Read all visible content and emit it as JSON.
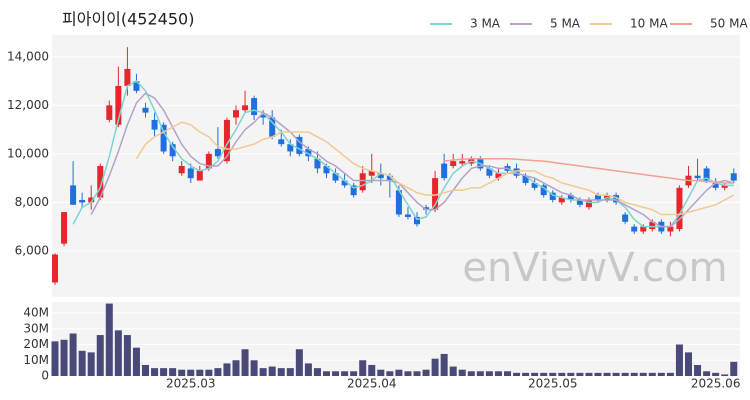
{
  "chart_data": {
    "type": "candlestick",
    "title": "피아이이(452450)",
    "watermark": "enViewV.com",
    "categories": [
      null,
      null,
      null,
      null,
      null,
      null,
      null,
      null,
      null,
      null,
      null,
      null,
      null,
      null,
      null,
      "2025.03",
      null,
      null,
      null,
      null,
      null,
      null,
      null,
      null,
      null,
      null,
      null,
      null,
      null,
      null,
      null,
      null,
      null,
      null,
      null,
      "2025.04",
      null,
      null,
      null,
      null,
      null,
      null,
      null,
      null,
      null,
      null,
      null,
      null,
      null,
      null,
      null,
      null,
      null,
      null,
      null,
      "2025.05",
      null,
      null,
      null,
      null,
      null,
      null,
      null,
      null,
      null,
      null,
      null,
      null,
      null,
      null,
      null,
      null,
      null,
      "2025.06",
      null,
      null
    ],
    "open": [
      4700,
      6300,
      8700,
      8100,
      8000,
      8200,
      11400,
      11200,
      12800,
      13000,
      11900,
      11400,
      11200,
      10400,
      9200,
      9400,
      8900,
      9400,
      10200,
      9700,
      11500,
      11800,
      12300,
      11600,
      11500,
      10600,
      10400,
      10700,
      10200,
      9800,
      9500,
      9200,
      8900,
      8700,
      8500,
      9100,
      9200,
      9100,
      8500,
      7500,
      7400,
      7800,
      7700,
      9600,
      9500,
      9600,
      9600,
      9800,
      9400,
      9000,
      9500,
      9400,
      9100,
      8800,
      8700,
      8400,
      8000,
      8300,
      8100,
      7800,
      8300,
      8100,
      8300,
      7500,
      7000,
      6800,
      6900,
      7200,
      6800,
      6900,
      8700,
      9100,
      9400,
      8800,
      8600,
      9200
    ],
    "high": [
      5900,
      7600,
      9700,
      8400,
      8700,
      9600,
      12200,
      13600,
      14400,
      13300,
      12100,
      11700,
      11300,
      10500,
      9700,
      9600,
      9500,
      10100,
      11100,
      11500,
      12000,
      12600,
      12400,
      11800,
      11800,
      11000,
      10600,
      10800,
      10300,
      10100,
      9600,
      9400,
      9200,
      8800,
      9500,
      10000,
      9600,
      9200,
      8700,
      7800,
      7600,
      7900,
      9300,
      10000,
      10000,
      10000,
      9900,
      9900,
      9500,
      9400,
      9600,
      9600,
      9200,
      9000,
      8800,
      8500,
      8300,
      8400,
      8200,
      8200,
      8400,
      8400,
      8400,
      7600,
      7100,
      7100,
      7300,
      7300,
      7200,
      8700,
      9500,
      9800,
      9500,
      9000,
      8800,
      9400
    ],
    "low": [
      4600,
      6200,
      7900,
      7800,
      7700,
      8100,
      11300,
      11100,
      12400,
      12500,
      11500,
      10700,
      10000,
      9700,
      9100,
      8800,
      8900,
      9300,
      9800,
      9600,
      11200,
      11700,
      11400,
      11200,
      10600,
      10300,
      9900,
      9900,
      9700,
      9200,
      9000,
      8800,
      8600,
      8200,
      8400,
      8800,
      8700,
      8200,
      7400,
      7300,
      7000,
      7500,
      7600,
      8900,
      9400,
      9500,
      9500,
      9300,
      9000,
      8900,
      9200,
      9000,
      8700,
      8500,
      8200,
      8000,
      7900,
      8000,
      7800,
      7700,
      8000,
      8000,
      7900,
      7100,
      6700,
      6700,
      6800,
      6700,
      6600,
      6800,
      8600,
      8900,
      8800,
      8500,
      8500,
      8800
    ],
    "close": [
      5850,
      7600,
      7900,
      8000,
      8200,
      9500,
      12000,
      12800,
      13500,
      12600,
      11700,
      11000,
      10100,
      9900,
      9500,
      9000,
      9300,
      10000,
      9900,
      11400,
      11800,
      12000,
      11600,
      11500,
      10700,
      10400,
      10100,
      10000,
      9900,
      9400,
      9200,
      8900,
      8700,
      8300,
      9200,
      9300,
      9000,
      8900,
      7500,
      7400,
      7100,
      7700,
      9000,
      9000,
      9700,
      9700,
      9800,
      9400,
      9100,
      9200,
      9300,
      9100,
      8800,
      8600,
      8300,
      8100,
      8200,
      8100,
      7900,
      8100,
      8100,
      8300,
      8000,
      7200,
      6800,
      7000,
      7200,
      6800,
      7000,
      8600,
      9100,
      9000,
      8900,
      8600,
      8700,
      8900
    ],
    "volume": [
      22,
      23,
      27,
      16,
      15,
      26,
      46,
      29,
      26,
      18,
      7,
      5,
      5,
      5,
      4,
      4,
      4,
      4,
      5,
      8,
      10,
      17,
      10,
      5,
      6,
      5,
      5,
      17,
      8,
      5,
      3,
      3,
      3,
      3,
      10,
      7,
      4,
      3,
      4,
      3,
      3,
      4,
      11,
      14,
      6,
      4,
      3,
      3,
      3,
      3,
      3,
      2,
      2,
      2,
      2,
      2,
      2,
      2,
      2,
      2,
      2,
      2,
      2,
      2,
      2,
      2,
      2,
      2,
      2,
      20,
      15,
      7,
      3,
      2,
      1,
      9
    ],
    "up_color": "#e8242c",
    "down_color": "#1f6fde",
    "volume_color": "#4a4a7a",
    "series": [
      {
        "name": "3 MA",
        "color": "#7fd3cf",
        "values": [
          null,
          null,
          7100,
          7800,
          8000,
          8600,
          9900,
          11400,
          12800,
          13000,
          12600,
          11800,
          10900,
          10300,
          9800,
          9500,
          9300,
          9400,
          9700,
          10400,
          11000,
          11700,
          11800,
          11700,
          11300,
          10900,
          10400,
          10200,
          10000,
          9800,
          9500,
          9200,
          8900,
          8600,
          8700,
          8900,
          9200,
          9100,
          8500,
          7900,
          7300,
          7400,
          7900,
          8600,
          9200,
          9500,
          9700,
          9600,
          9400,
          9200,
          9200,
          9200,
          9100,
          8800,
          8600,
          8300,
          8200,
          8100,
          8100,
          8000,
          8000,
          8200,
          8100,
          7800,
          7300,
          7000,
          7000,
          7000,
          7000,
          7500,
          8200,
          8900,
          9000,
          8800,
          8700,
          8700
        ]
      },
      {
        "name": "5 MA",
        "color": "#b3a2c9",
        "values": [
          null,
          null,
          null,
          null,
          7500,
          8200,
          9100,
          10100,
          11200,
          12100,
          12500,
          12300,
          11800,
          11100,
          10400,
          9900,
          9600,
          9500,
          9500,
          9900,
          10500,
          11000,
          11300,
          11700,
          11500,
          11200,
          10900,
          10500,
          10200,
          10000,
          9700,
          9500,
          9200,
          8900,
          8900,
          8900,
          8900,
          8900,
          8800,
          8400,
          8000,
          7700,
          7700,
          8000,
          8500,
          9000,
          9400,
          9500,
          9500,
          9400,
          9400,
          9200,
          9100,
          9000,
          8800,
          8600,
          8400,
          8300,
          8100,
          8100,
          8100,
          8100,
          8100,
          7900,
          7700,
          7500,
          7200,
          7000,
          7000,
          7300,
          7700,
          8100,
          8500,
          8800,
          8900,
          8800
        ]
      },
      {
        "name": "10 MA",
        "color": "#f2c992",
        "values": [
          null,
          null,
          null,
          null,
          null,
          null,
          null,
          null,
          null,
          9800,
          10400,
          10700,
          10900,
          11100,
          11300,
          11200,
          10900,
          10700,
          10300,
          10200,
          10200,
          10300,
          10400,
          10600,
          10700,
          10900,
          10900,
          10900,
          10900,
          10700,
          10500,
          10200,
          9900,
          9600,
          9400,
          9300,
          9200,
          9100,
          8800,
          8600,
          8400,
          8300,
          8300,
          8400,
          8500,
          8500,
          8600,
          8600,
          8800,
          9000,
          9200,
          9300,
          9300,
          9300,
          9100,
          9000,
          8800,
          8700,
          8600,
          8500,
          8300,
          8300,
          8200,
          8000,
          7900,
          7800,
          7700,
          7500,
          7500,
          7500,
          7600,
          7700,
          7800,
          7900,
          8100,
          8300
        ]
      },
      {
        "name": "50 MA",
        "color": "#f0a192",
        "values": [
          null,
          null,
          null,
          null,
          null,
          null,
          null,
          null,
          null,
          null,
          null,
          null,
          null,
          null,
          null,
          null,
          null,
          null,
          null,
          null,
          null,
          null,
          null,
          null,
          null,
          null,
          null,
          null,
          null,
          null,
          null,
          null,
          null,
          null,
          null,
          null,
          null,
          null,
          null,
          null,
          null,
          null,
          null,
          9700,
          9750,
          9780,
          9800,
          9800,
          9800,
          9800,
          9800,
          9780,
          9750,
          9720,
          9700,
          9650,
          9600,
          9550,
          9500,
          9450,
          9400,
          9350,
          9300,
          9250,
          9200,
          9150,
          9100,
          9050,
          9000,
          8950,
          8900,
          8900,
          8850,
          8850,
          8800,
          8800
        ]
      }
    ],
    "ylim": [
      4100,
      14900
    ],
    "yticks": [
      {
        "value": 6000,
        "label": "6,000"
      },
      {
        "value": 8000,
        "label": "8,000"
      },
      {
        "value": 10000,
        "label": "10,000"
      },
      {
        "value": 12000,
        "label": "12,000"
      },
      {
        "value": 14000,
        "label": "14,000"
      }
    ],
    "volume_ylim": [
      0,
      47
    ],
    "volume_yticks": [
      {
        "value": 0,
        "label": "0"
      },
      {
        "value": 10,
        "label": "10M"
      },
      {
        "value": 20,
        "label": "20M"
      },
      {
        "value": 30,
        "label": "30M"
      },
      {
        "value": 40,
        "label": "40M"
      }
    ],
    "grid": true
  }
}
